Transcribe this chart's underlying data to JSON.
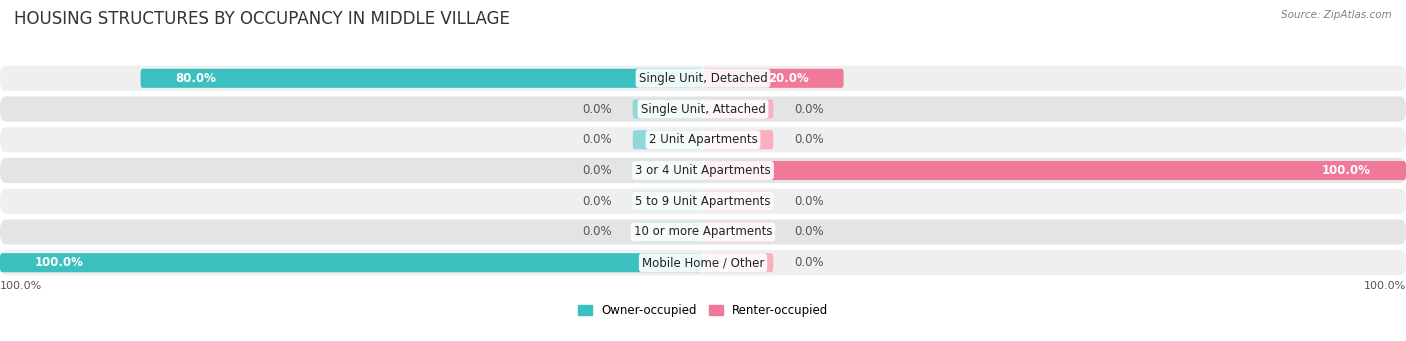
{
  "title": "HOUSING STRUCTURES BY OCCUPANCY IN MIDDLE VILLAGE",
  "source": "Source: ZipAtlas.com",
  "categories": [
    "Single Unit, Detached",
    "Single Unit, Attached",
    "2 Unit Apartments",
    "3 or 4 Unit Apartments",
    "5 to 9 Unit Apartments",
    "10 or more Apartments",
    "Mobile Home / Other"
  ],
  "owner_values": [
    80.0,
    0.0,
    0.0,
    0.0,
    0.0,
    0.0,
    100.0
  ],
  "renter_values": [
    20.0,
    0.0,
    0.0,
    100.0,
    0.0,
    0.0,
    0.0
  ],
  "owner_color": "#3BBFBF",
  "renter_color": "#F07898",
  "owner_stub_color": "#90D8D8",
  "renter_stub_color": "#F8B0C0",
  "owner_label": "Owner-occupied",
  "renter_label": "Renter-occupied",
  "row_bg_even": "#EFEFEF",
  "row_bg_odd": "#E4E4E4",
  "title_fontsize": 12,
  "label_fontsize": 8.5,
  "value_fontsize": 8.5,
  "axis_label_fontsize": 8,
  "figsize": [
    14.06,
    3.41
  ],
  "dpi": 100
}
